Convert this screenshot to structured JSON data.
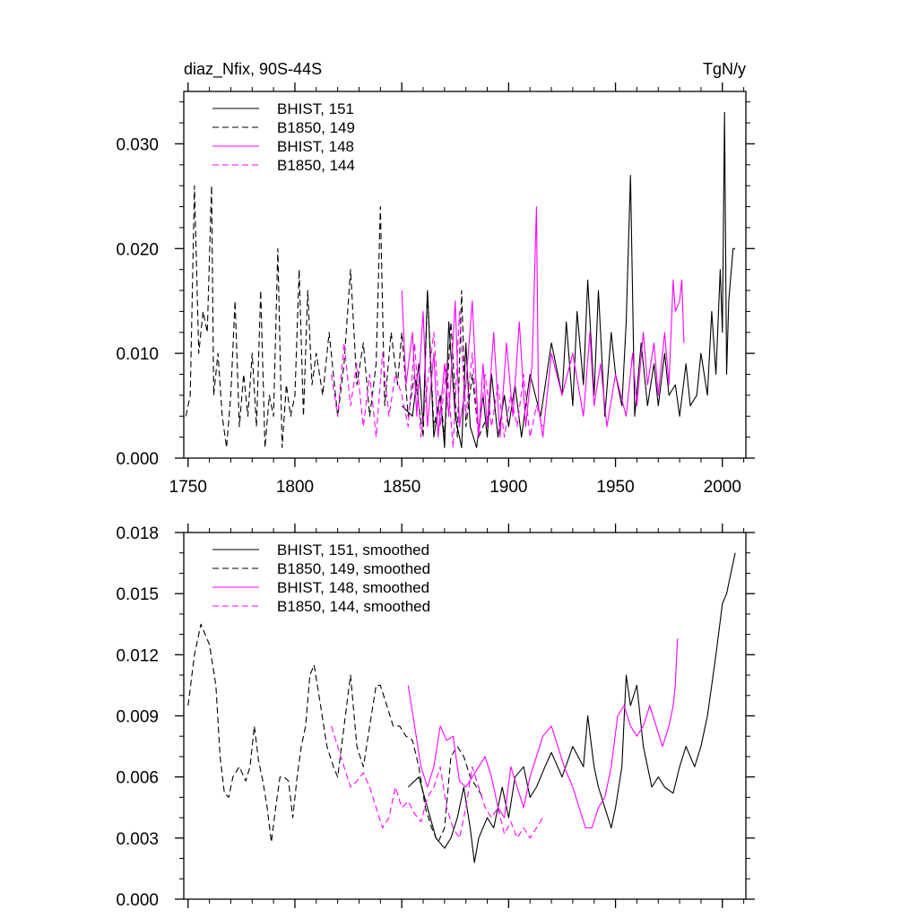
{
  "chart_data": [
    {
      "type": "line",
      "title_left": "diaz_Nfix, 90S-44S",
      "title_right": "TgN/y",
      "xlim": [
        1748,
        2011
      ],
      "ylim": [
        0,
        0.035
      ],
      "x_ticks": [
        1750,
        1800,
        1850,
        1900,
        1950,
        2000
      ],
      "y_ticks": [
        0,
        0.01,
        0.02,
        0.03
      ],
      "y_tick_labels": [
        "0.000",
        "0.010",
        "0.020",
        "0.030"
      ],
      "x_tick_labels_shown": true,
      "legend_position": "top-left",
      "series": [
        {
          "name": "BHIST, 151",
          "color": "#000000",
          "dash": "solid",
          "x": [
            1850,
            1855,
            1858,
            1860,
            1862,
            1865,
            1868,
            1870,
            1872,
            1875,
            1878,
            1880,
            1882,
            1885,
            1888,
            1890,
            1892,
            1895,
            1898,
            1900,
            1903,
            1906,
            1910,
            1915,
            1920,
            1925,
            1927,
            1930,
            1932,
            1935,
            1937,
            1940,
            1942,
            1945,
            1948,
            1950,
            1953,
            1955,
            1957,
            1959,
            1962,
            1965,
            1968,
            1970,
            1973,
            1975,
            1978,
            1980,
            1983,
            1985,
            1988,
            1990,
            1993,
            1995,
            1997,
            1999,
            2000,
            2001,
            2002,
            2003,
            2005,
            2006
          ],
          "y": [
            0.005,
            0.004,
            0.009,
            0.003,
            0.016,
            0.002,
            0.006,
            0.001,
            0.013,
            0.004,
            0.001,
            0.011,
            0.003,
            0.001,
            0.006,
            0.002,
            0.008,
            0.002,
            0.006,
            0.003,
            0.007,
            0.002,
            0.008,
            0.004,
            0.011,
            0.006,
            0.013,
            0.005,
            0.014,
            0.007,
            0.017,
            0.006,
            0.016,
            0.004,
            0.012,
            0.008,
            0.005,
            0.013,
            0.027,
            0.004,
            0.011,
            0.005,
            0.009,
            0.005,
            0.01,
            0.006,
            0.007,
            0.004,
            0.009,
            0.005,
            0.006,
            0.01,
            0.006,
            0.014,
            0.008,
            0.018,
            0.012,
            0.033,
            0.008,
            0.015,
            0.02,
            0.02
          ]
        },
        {
          "name": "B1850, 149",
          "color": "#000000",
          "dash": "dashed",
          "x": [
            1749,
            1751,
            1753,
            1755,
            1757,
            1759,
            1761,
            1762,
            1764,
            1766,
            1768,
            1770,
            1772,
            1774,
            1776,
            1778,
            1780,
            1782,
            1784,
            1786,
            1788,
            1790,
            1792,
            1794,
            1796,
            1798,
            1800,
            1802,
            1804,
            1806,
            1808,
            1810,
            1813,
            1816,
            1820,
            1823,
            1826,
            1829,
            1832,
            1835,
            1838,
            1840,
            1842,
            1845,
            1848,
            1850,
            1853,
            1856,
            1860,
            1862,
            1865,
            1868,
            1870,
            1873,
            1876,
            1878,
            1880,
            1883,
            1886,
            1890
          ],
          "y": [
            0.004,
            0.006,
            0.026,
            0.01,
            0.014,
            0.012,
            0.026,
            0.006,
            0.01,
            0.004,
            0.001,
            0.006,
            0.015,
            0.003,
            0.008,
            0.004,
            0.01,
            0.003,
            0.016,
            0.001,
            0.006,
            0.004,
            0.02,
            0.001,
            0.007,
            0.004,
            0.006,
            0.018,
            0.004,
            0.016,
            0.007,
            0.01,
            0.006,
            0.012,
            0.004,
            0.009,
            0.018,
            0.007,
            0.011,
            0.004,
            0.009,
            0.024,
            0.005,
            0.012,
            0.007,
            0.012,
            0.004,
            0.008,
            0.002,
            0.016,
            0.003,
            0.006,
            0.002,
            0.013,
            0.002,
            0.016,
            0.003,
            0.008,
            0.002,
            0.004
          ]
        },
        {
          "name": "BHIST, 148",
          "color": "#ff00ff",
          "dash": "solid",
          "x": [
            1850,
            1852,
            1855,
            1857,
            1860,
            1862,
            1865,
            1867,
            1870,
            1872,
            1875,
            1877,
            1880,
            1883,
            1886,
            1888,
            1890,
            1893,
            1896,
            1899,
            1902,
            1905,
            1908,
            1911,
            1913,
            1914,
            1916,
            1920,
            1925,
            1930,
            1935,
            1938,
            1940,
            1943,
            1946,
            1950,
            1955,
            1958,
            1960,
            1963,
            1965,
            1968,
            1970,
            1973,
            1975,
            1977,
            1978,
            1980,
            1981,
            1982
          ],
          "y": [
            0.016,
            0.007,
            0.012,
            0.004,
            0.014,
            0.003,
            0.01,
            0.002,
            0.009,
            0.004,
            0.015,
            0.003,
            0.007,
            0.015,
            0.002,
            0.009,
            0.003,
            0.012,
            0.002,
            0.011,
            0.004,
            0.013,
            0.003,
            0.009,
            0.024,
            0.005,
            0.002,
            0.01,
            0.006,
            0.01,
            0.004,
            0.012,
            0.005,
            0.009,
            0.003,
            0.008,
            0.004,
            0.01,
            0.005,
            0.012,
            0.007,
            0.011,
            0.006,
            0.012,
            0.007,
            0.017,
            0.014,
            0.015,
            0.017,
            0.011
          ]
        },
        {
          "name": "B1850, 144",
          "color": "#ff00ff",
          "dash": "dashed",
          "x": [
            1817,
            1820,
            1823,
            1826,
            1829,
            1832,
            1835,
            1838,
            1841,
            1844,
            1847,
            1850,
            1853,
            1856,
            1859,
            1862,
            1865,
            1868,
            1871,
            1874,
            1877,
            1880,
            1883,
            1886,
            1889,
            1892,
            1895,
            1898,
            1901,
            1904,
            1907,
            1910,
            1913,
            1916
          ],
          "y": [
            0.008,
            0.004,
            0.011,
            0.005,
            0.009,
            0.003,
            0.008,
            0.002,
            0.01,
            0.004,
            0.008,
            0.006,
            0.003,
            0.011,
            0.002,
            0.007,
            0.012,
            0.003,
            0.009,
            0.001,
            0.014,
            0.004,
            0.01,
            0.002,
            0.008,
            0.003,
            0.007,
            0.002,
            0.006,
            0.003,
            0.008,
            0.002,
            0.005,
            0.003
          ]
        }
      ]
    },
    {
      "type": "line",
      "xlim": [
        1748,
        2011
      ],
      "ylim": [
        0,
        0.018
      ],
      "x_ticks": [
        1750,
        1800,
        1850,
        1900,
        1950,
        2000
      ],
      "y_ticks": [
        0,
        0.003,
        0.006,
        0.009,
        0.012,
        0.015,
        0.018
      ],
      "y_tick_labels": [
        "0.000",
        "0.003",
        "0.006",
        "0.009",
        "0.012",
        "0.015",
        "0.018"
      ],
      "x_tick_labels_shown": false,
      "legend_position": "top-left",
      "series": [
        {
          "name": "BHIST, 151, smoothed",
          "color": "#000000",
          "dash": "solid",
          "x": [
            1853,
            1858,
            1862,
            1866,
            1870,
            1873,
            1876,
            1879,
            1882,
            1884,
            1886,
            1890,
            1893,
            1897,
            1900,
            1903,
            1907,
            1910,
            1913,
            1917,
            1920,
            1925,
            1930,
            1935,
            1937,
            1940,
            1942,
            1945,
            1948,
            1950,
            1953,
            1955,
            1957,
            1960,
            1963,
            1967,
            1970,
            1973,
            1977,
            1980,
            1983,
            1985,
            1987,
            1990,
            1993,
            1995,
            1997,
            2000,
            2002,
            2003,
            2005,
            2006
          ],
          "y": [
            0.0055,
            0.006,
            0.0045,
            0.003,
            0.0025,
            0.003,
            0.004,
            0.0055,
            0.0035,
            0.0018,
            0.003,
            0.004,
            0.0035,
            0.0055,
            0.004,
            0.006,
            0.0065,
            0.005,
            0.0055,
            0.0065,
            0.0072,
            0.006,
            0.0075,
            0.0065,
            0.009,
            0.0065,
            0.0055,
            0.0045,
            0.0035,
            0.0045,
            0.0065,
            0.011,
            0.0095,
            0.0105,
            0.0075,
            0.0055,
            0.006,
            0.0055,
            0.0052,
            0.0065,
            0.0075,
            0.007,
            0.0065,
            0.0075,
            0.009,
            0.0105,
            0.012,
            0.0145,
            0.015,
            0.0155,
            0.0165,
            0.017
          ]
        },
        {
          "name": "B1850, 149, smoothed",
          "color": "#000000",
          "dash": "dashed",
          "x": [
            1750,
            1753,
            1756,
            1758,
            1760,
            1763,
            1765,
            1767,
            1769,
            1771,
            1774,
            1777,
            1779,
            1781,
            1783,
            1785,
            1787,
            1789,
            1791,
            1793,
            1795,
            1797,
            1799,
            1801,
            1803,
            1805,
            1807,
            1809,
            1812,
            1815,
            1818,
            1820,
            1823,
            1826,
            1829,
            1832,
            1835,
            1838,
            1840,
            1843,
            1846,
            1849,
            1852,
            1855,
            1858,
            1861,
            1864,
            1867,
            1870,
            1873,
            1876,
            1879,
            1882,
            1885,
            1888
          ],
          "y": [
            0.0095,
            0.012,
            0.0135,
            0.013,
            0.0125,
            0.0105,
            0.007,
            0.0052,
            0.005,
            0.006,
            0.0065,
            0.0058,
            0.0065,
            0.0085,
            0.0068,
            0.0058,
            0.0045,
            0.0028,
            0.0045,
            0.006,
            0.006,
            0.0058,
            0.004,
            0.006,
            0.0075,
            0.0085,
            0.011,
            0.0115,
            0.0095,
            0.0075,
            0.0065,
            0.006,
            0.0085,
            0.011,
            0.0075,
            0.0065,
            0.0085,
            0.0105,
            0.0105,
            0.0095,
            0.0085,
            0.0085,
            0.008,
            0.0078,
            0.0065,
            0.0045,
            0.0035,
            0.0028,
            0.0035,
            0.007,
            0.0075,
            0.007,
            0.006,
            0.0055,
            0.005
          ]
        },
        {
          "name": "BHIST, 148, smoothed",
          "color": "#ff00ff",
          "dash": "solid",
          "x": [
            1853,
            1856,
            1859,
            1862,
            1865,
            1868,
            1871,
            1874,
            1877,
            1880,
            1883,
            1886,
            1889,
            1892,
            1895,
            1898,
            1901,
            1904,
            1907,
            1910,
            1913,
            1916,
            1920,
            1923,
            1926,
            1930,
            1933,
            1936,
            1939,
            1942,
            1945,
            1948,
            1951,
            1954,
            1957,
            1960,
            1963,
            1966,
            1969,
            1972,
            1975,
            1977,
            1978,
            1979
          ],
          "y": [
            0.0105,
            0.0085,
            0.0065,
            0.0055,
            0.0065,
            0.0085,
            0.0078,
            0.008,
            0.0058,
            0.0055,
            0.006,
            0.0065,
            0.007,
            0.006,
            0.0045,
            0.004,
            0.0065,
            0.0055,
            0.0045,
            0.006,
            0.007,
            0.008,
            0.0085,
            0.0075,
            0.0065,
            0.0055,
            0.0045,
            0.0035,
            0.0035,
            0.0045,
            0.005,
            0.0065,
            0.009,
            0.0095,
            0.0085,
            0.008,
            0.0085,
            0.0095,
            0.0085,
            0.0075,
            0.0085,
            0.0095,
            0.0105,
            0.0128
          ]
        },
        {
          "name": "B1850, 144, smoothed",
          "color": "#ff00ff",
          "dash": "dashed",
          "x": [
            1817,
            1820,
            1823,
            1826,
            1829,
            1832,
            1835,
            1838,
            1841,
            1844,
            1847,
            1850,
            1853,
            1856,
            1859,
            1862,
            1865,
            1868,
            1871,
            1874,
            1877,
            1880,
            1883,
            1886,
            1889,
            1892,
            1895,
            1898,
            1901,
            1904,
            1907,
            1910,
            1913,
            1916
          ],
          "y": [
            0.0085,
            0.0075,
            0.0065,
            0.0055,
            0.0058,
            0.0062,
            0.0055,
            0.0045,
            0.0035,
            0.004,
            0.0055,
            0.0045,
            0.0048,
            0.0042,
            0.0038,
            0.005,
            0.0055,
            0.0065,
            0.0045,
            0.0035,
            0.003,
            0.0045,
            0.0065,
            0.0055,
            0.0045,
            0.004,
            0.0045,
            0.0032,
            0.0038,
            0.003,
            0.0035,
            0.003,
            0.0035,
            0.004
          ]
        }
      ]
    }
  ]
}
